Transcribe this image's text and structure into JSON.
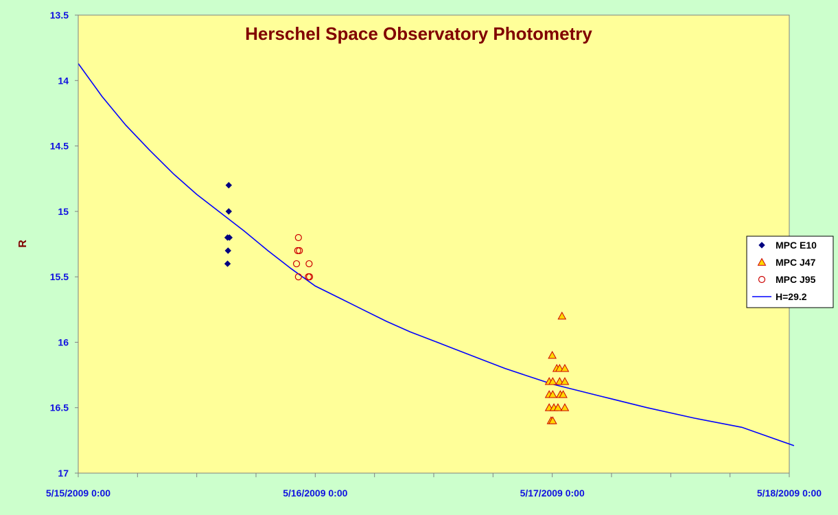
{
  "chart_data": {
    "type": "scatter",
    "title": "Herschel Space Observatory Photometry",
    "ylabel": "R",
    "xlabel": "",
    "x_ticks": [
      "5/15/2009 0:00",
      "5/16/2009 0:00",
      "5/17/2009 0:00",
      "5/18/2009 0:00"
    ],
    "xlim": [
      "2009-05-15",
      "2009-05-18"
    ],
    "x_tick_days": [
      0,
      1,
      2,
      3
    ],
    "ylim": [
      13.5,
      17
    ],
    "y_inverted": true,
    "y_ticks": [
      13.5,
      14,
      14.5,
      15,
      15.5,
      16,
      16.5,
      17
    ],
    "grid": false,
    "legend_position": "right",
    "colors": {
      "plot_bg": "#ffff99",
      "page_bg": "#ccffcc",
      "curve": "#0000ff",
      "e10": "#000080",
      "j47_fill": "#ffd700",
      "j47_stroke": "#cc0000",
      "j95": "#cc0000",
      "title": "#800000",
      "ticks": "#1010e0"
    },
    "series": [
      {
        "name": "MPC E10",
        "marker": "diamond",
        "points": [
          {
            "x": 0.635,
            "y": 14.8
          },
          {
            "x": 0.635,
            "y": 15.0
          },
          {
            "x": 0.63,
            "y": 15.2
          },
          {
            "x": 0.638,
            "y": 15.2
          },
          {
            "x": 0.632,
            "y": 15.3
          },
          {
            "x": 0.63,
            "y": 15.4
          }
        ]
      },
      {
        "name": "MPC J47",
        "marker": "triangle",
        "points": [
          {
            "x": 2.041,
            "y": 15.8
          },
          {
            "x": 2.0,
            "y": 16.1
          },
          {
            "x": 2.019,
            "y": 16.2
          },
          {
            "x": 2.031,
            "y": 16.2
          },
          {
            "x": 2.053,
            "y": 16.2
          },
          {
            "x": 1.987,
            "y": 16.3
          },
          {
            "x": 2.002,
            "y": 16.3
          },
          {
            "x": 2.031,
            "y": 16.3
          },
          {
            "x": 2.053,
            "y": 16.3
          },
          {
            "x": 1.987,
            "y": 16.4
          },
          {
            "x": 2.002,
            "y": 16.4
          },
          {
            "x": 2.034,
            "y": 16.4
          },
          {
            "x": 2.046,
            "y": 16.4
          },
          {
            "x": 1.987,
            "y": 16.5
          },
          {
            "x": 2.007,
            "y": 16.5
          },
          {
            "x": 2.024,
            "y": 16.5
          },
          {
            "x": 2.053,
            "y": 16.5
          },
          {
            "x": 1.995,
            "y": 16.6
          },
          {
            "x": 2.002,
            "y": 16.6
          }
        ]
      },
      {
        "name": "MPC J95",
        "marker": "circle",
        "points": [
          {
            "x": 0.929,
            "y": 15.2
          },
          {
            "x": 0.926,
            "y": 15.3
          },
          {
            "x": 0.933,
            "y": 15.3
          },
          {
            "x": 0.921,
            "y": 15.4
          },
          {
            "x": 0.974,
            "y": 15.4
          },
          {
            "x": 0.929,
            "y": 15.5
          },
          {
            "x": 0.971,
            "y": 15.5
          },
          {
            "x": 0.976,
            "y": 15.5
          }
        ]
      },
      {
        "name": "H=29.2",
        "marker": "line",
        "points": [
          {
            "x": 0.0,
            "y": 13.87
          },
          {
            "x": 0.1,
            "y": 14.12
          },
          {
            "x": 0.2,
            "y": 14.34
          },
          {
            "x": 0.3,
            "y": 14.53
          },
          {
            "x": 0.4,
            "y": 14.71
          },
          {
            "x": 0.5,
            "y": 14.87
          },
          {
            "x": 0.6,
            "y": 15.01
          },
          {
            "x": 0.7,
            "y": 15.15
          },
          {
            "x": 0.8,
            "y": 15.3
          },
          {
            "x": 0.9,
            "y": 15.44
          },
          {
            "x": 1.0,
            "y": 15.57
          },
          {
            "x": 1.1,
            "y": 15.66
          },
          {
            "x": 1.2,
            "y": 15.75
          },
          {
            "x": 1.3,
            "y": 15.84
          },
          {
            "x": 1.4,
            "y": 15.92
          },
          {
            "x": 1.5,
            "y": 15.99
          },
          {
            "x": 1.6,
            "y": 16.06
          },
          {
            "x": 1.7,
            "y": 16.13
          },
          {
            "x": 1.8,
            "y": 16.2
          },
          {
            "x": 1.9,
            "y": 16.26
          },
          {
            "x": 2.0,
            "y": 16.32
          },
          {
            "x": 2.2,
            "y": 16.41
          },
          {
            "x": 2.4,
            "y": 16.5
          },
          {
            "x": 2.6,
            "y": 16.58
          },
          {
            "x": 2.8,
            "y": 16.65
          },
          {
            "x": 3.02,
            "y": 16.79
          }
        ]
      }
    ]
  }
}
